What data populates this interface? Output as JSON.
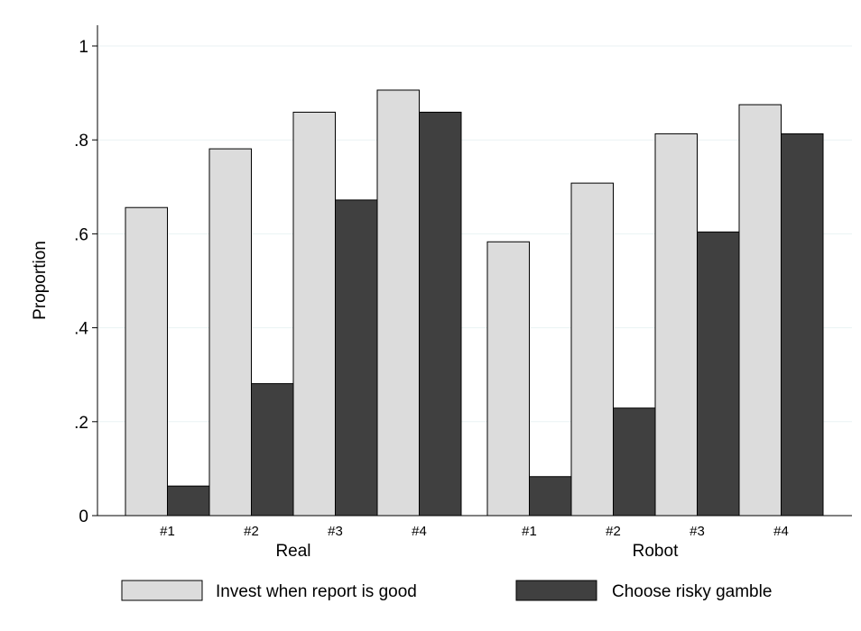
{
  "colors": {
    "background": "#ffffff",
    "gridline": "#eaf2f3",
    "bar_series_1": "#dcdcdc",
    "bar_series_2": "#404040",
    "bar_outline": "#000000"
  },
  "chart_data": {
    "type": "bar",
    "title": "",
    "xlabel": "",
    "ylabel": "Proportion",
    "ylim": [
      0,
      1
    ],
    "yticks": [
      0,
      0.2,
      0.4,
      0.6,
      0.8,
      1
    ],
    "ytick_labels": [
      "0",
      ".2",
      ".4",
      ".6",
      ".8",
      "1"
    ],
    "grid": true,
    "legend_position": "bottom",
    "groups": [
      {
        "label": "Real",
        "categories": [
          "#1",
          "#2",
          "#3",
          "#4"
        ]
      },
      {
        "label": "Robot",
        "categories": [
          "#1",
          "#2",
          "#3",
          "#4"
        ]
      }
    ],
    "series": [
      {
        "name": "Invest when report is good",
        "values": [
          [
            0.656,
            0.781,
            0.859,
            0.906
          ],
          [
            0.583,
            0.708,
            0.813,
            0.875
          ]
        ]
      },
      {
        "name": "Choose risky gamble",
        "values": [
          [
            0.063,
            0.281,
            0.672,
            0.859
          ],
          [
            0.083,
            0.229,
            0.604,
            0.813
          ]
        ]
      }
    ]
  }
}
